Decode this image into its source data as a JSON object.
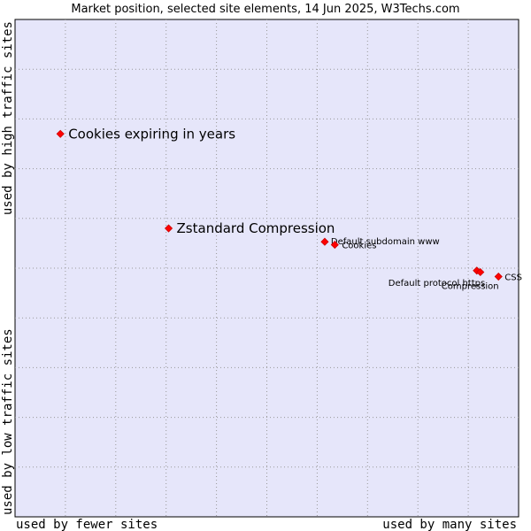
{
  "chart_data": {
    "type": "scatter",
    "title": "Market position, selected site elements, 14 Jun 2025, W3Techs.com",
    "xlabel_left": "used by fewer sites",
    "xlabel_right": "used by many sites",
    "ylabel_bottom": "used by low traffic sites",
    "ylabel_top": "used by high traffic sites",
    "xlim": [
      0,
      100
    ],
    "ylim": [
      0,
      100
    ],
    "grid": true,
    "points": [
      {
        "name": "Cookies expiring in years",
        "x": 9,
        "y": 77,
        "label_size": "large"
      },
      {
        "name": "Zstandard Compression",
        "x": 30.5,
        "y": 58,
        "label_size": "large"
      },
      {
        "name": "Default subdomain www",
        "x": 61.5,
        "y": 55.3,
        "label_size": "small"
      },
      {
        "name": "Cookies",
        "x": 63.5,
        "y": 54.7,
        "label_size": "small"
      },
      {
        "name": "Default protocol https",
        "x": 91.7,
        "y": 49.5,
        "label_size": "small"
      },
      {
        "name": "Compression",
        "x": 92.4,
        "y": 49.2,
        "label_size": "small"
      },
      {
        "name": "CSS",
        "x": 96,
        "y": 48.3,
        "label_size": "small"
      }
    ]
  },
  "colors": {
    "plot_background": "#e6e6fa",
    "grid": "#999999",
    "point": "#ff0000"
  }
}
